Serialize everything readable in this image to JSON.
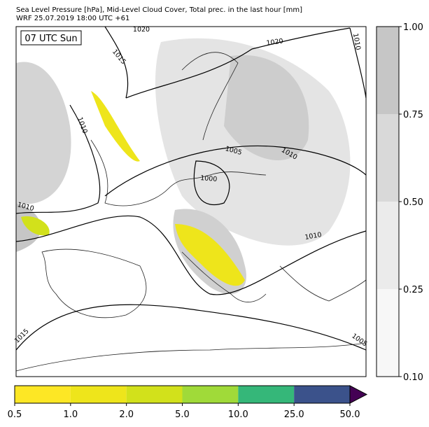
{
  "header": {
    "title": "Sea Level Pressure [hPa], Mid-Level Cloud Cover, Total prec. in the last hour [mm]",
    "subtitle": "WRF 25.07.2019 18:00 UTC +61"
  },
  "map": {
    "time_label": "07 UTC Sun",
    "contour_labels": [
      "1020",
      "1020",
      "1010",
      "1015",
      "1010",
      "1005",
      "1010",
      "1000",
      "1010",
      "1010",
      "1015",
      "1005"
    ]
  },
  "cloud_colorbar": {
    "ticks": [
      "0.10",
      "0.25",
      "0.50",
      "0.75",
      "1.00"
    ],
    "colors": [
      "#f7f7f7",
      "#ebebeb",
      "#d9d9d9",
      "#c6c6c6"
    ]
  },
  "precip_colorbar": {
    "ticks": [
      "0.5",
      "1.0",
      "2.0",
      "5.0",
      "10.0",
      "25.0",
      "50.0"
    ],
    "colors": [
      "#fde725",
      "#eee51b",
      "#d2e11b",
      "#a0da39",
      "#35b779",
      "#3b528b"
    ],
    "extend_color": "#440154"
  }
}
